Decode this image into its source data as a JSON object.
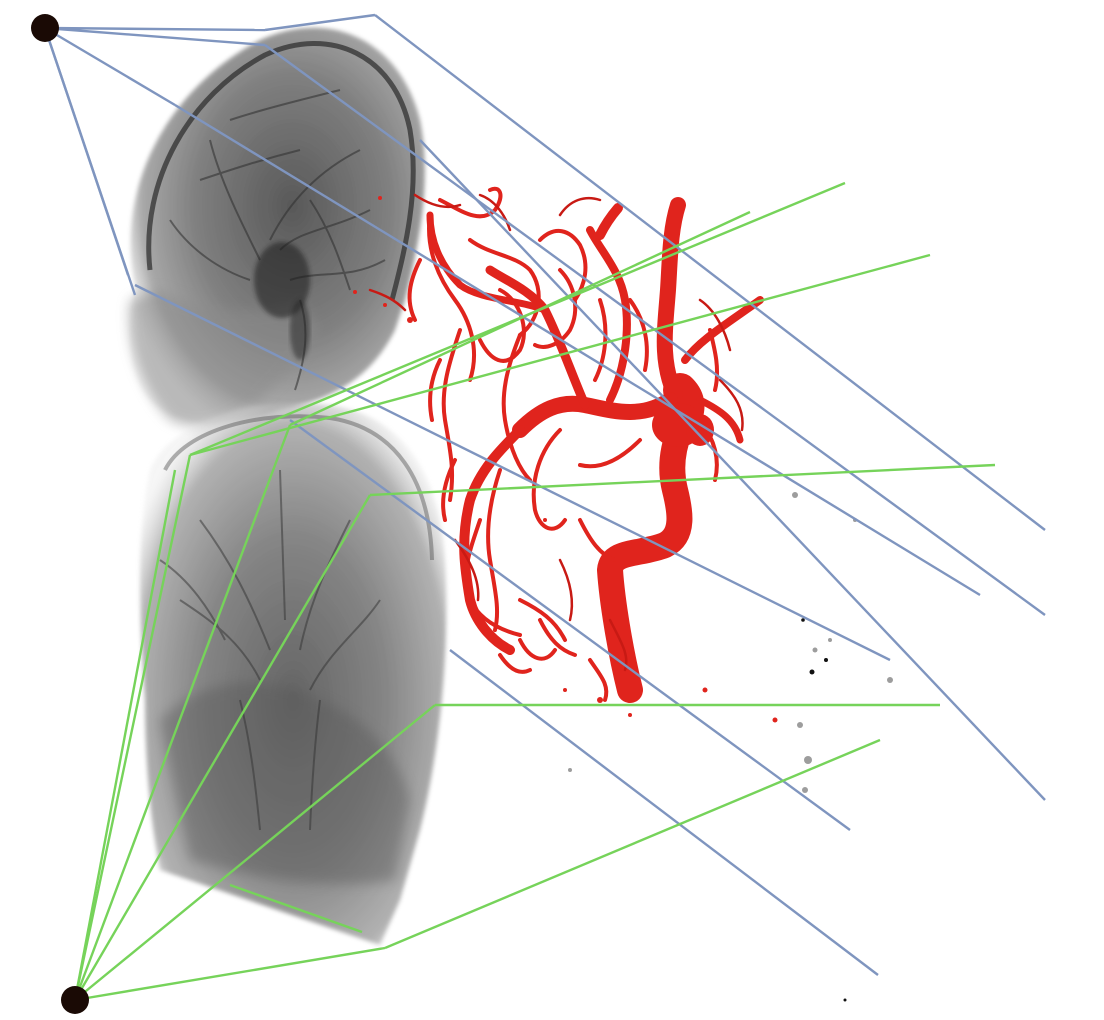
{
  "figure": {
    "background": "#ffffff",
    "colors": {
      "lateral_rays": "#7f95bf",
      "frontal_rays": "#76d35a",
      "vessels": "#e0241d",
      "vessels_dark": "#a8120d",
      "xray_dark": "#2a2a2a",
      "xray_light": "#bdbdbd",
      "source": "#1a0a05"
    },
    "sources": [
      "lateral-xray-source",
      "frontal-xray-source"
    ],
    "projections": [
      "lateral-angiogram-projection",
      "frontal-angiogram-projection"
    ],
    "reconstruction": "3d-vessel-reconstruction"
  }
}
